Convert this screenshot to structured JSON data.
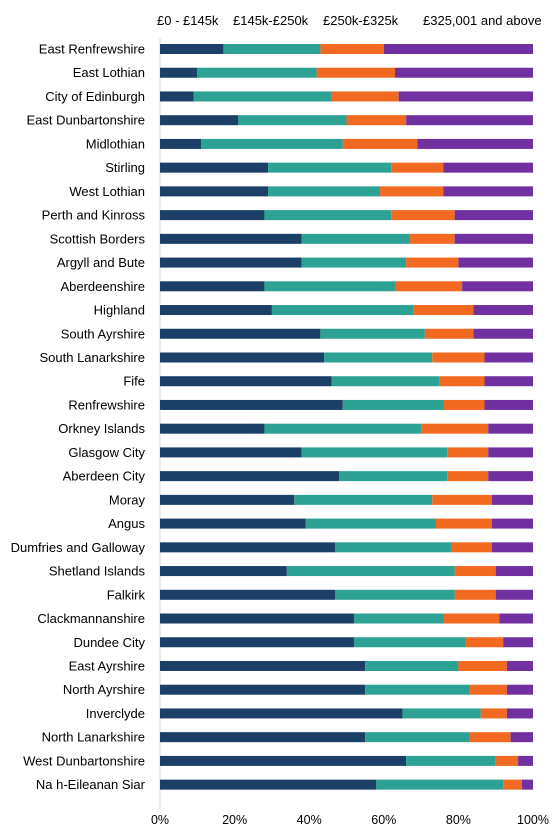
{
  "chart_data": {
    "type": "bar",
    "orientation": "horizontal",
    "stacked": true,
    "percent": true,
    "title": "",
    "xlabel": "",
    "ylabel": "",
    "xlim": [
      0,
      100
    ],
    "x_ticks": [
      "0%",
      "20%",
      "40%",
      "60%",
      "80%",
      "100%"
    ],
    "legend_position": "top",
    "categories": [
      "East Renfrewshire",
      "East Lothian",
      "City of Edinburgh",
      "East Dunbartonshire",
      "Midlothian",
      "Stirling",
      "West Lothian",
      "Perth and Kinross",
      "Scottish Borders",
      "Argyll and Bute",
      "Aberdeenshire",
      "Highland",
      "South Ayrshire",
      "South Lanarkshire",
      "Fife",
      "Renfrewshire",
      "Orkney Islands",
      "Glasgow City",
      "Aberdeen City",
      "Moray",
      "Angus",
      "Dumfries and Galloway",
      "Shetland Islands",
      "Falkirk",
      "Clackmannanshire",
      "Dundee City",
      "East Ayrshire",
      "North Ayrshire",
      "Inverclyde",
      "North Lanarkshire",
      "West Dunbartonshire",
      "Na h-Eileanan Siar"
    ],
    "series": [
      {
        "name": "£0 - £145k",
        "color": "#1b3f66",
        "values": [
          17,
          10,
          9,
          21,
          11,
          29,
          29,
          28,
          38,
          38,
          28,
          30,
          43,
          44,
          46,
          49,
          28,
          38,
          48,
          36,
          39,
          47,
          34,
          47,
          52,
          52,
          55,
          55,
          65,
          55,
          66,
          58
        ]
      },
      {
        "name": "£145k-£250k",
        "color": "#2ea195",
        "values": [
          26,
          32,
          37,
          29,
          38,
          33,
          30,
          34,
          29,
          28,
          35,
          38,
          28,
          29,
          29,
          27,
          42,
          39,
          29,
          37,
          35,
          31,
          45,
          32,
          24,
          30,
          25,
          28,
          21,
          28,
          24,
          34
        ]
      },
      {
        "name": "£250k-£325k",
        "color": "#f26a21",
        "values": [
          17,
          21,
          18,
          16,
          20,
          14,
          17,
          17,
          12,
          14,
          18,
          16,
          13,
          14,
          12,
          11,
          18,
          11,
          11,
          16,
          15,
          11,
          11,
          11,
          15,
          10,
          13,
          10,
          7,
          11,
          6,
          5
        ]
      },
      {
        "name": "£325,001 and above",
        "color": "#7030a0",
        "values": [
          40,
          37,
          36,
          34,
          31,
          24,
          24,
          21,
          21,
          20,
          19,
          16,
          16,
          13,
          13,
          13,
          12,
          12,
          12,
          11,
          11,
          11,
          10,
          10,
          9,
          8,
          7,
          7,
          7,
          6,
          4,
          3
        ]
      }
    ]
  }
}
